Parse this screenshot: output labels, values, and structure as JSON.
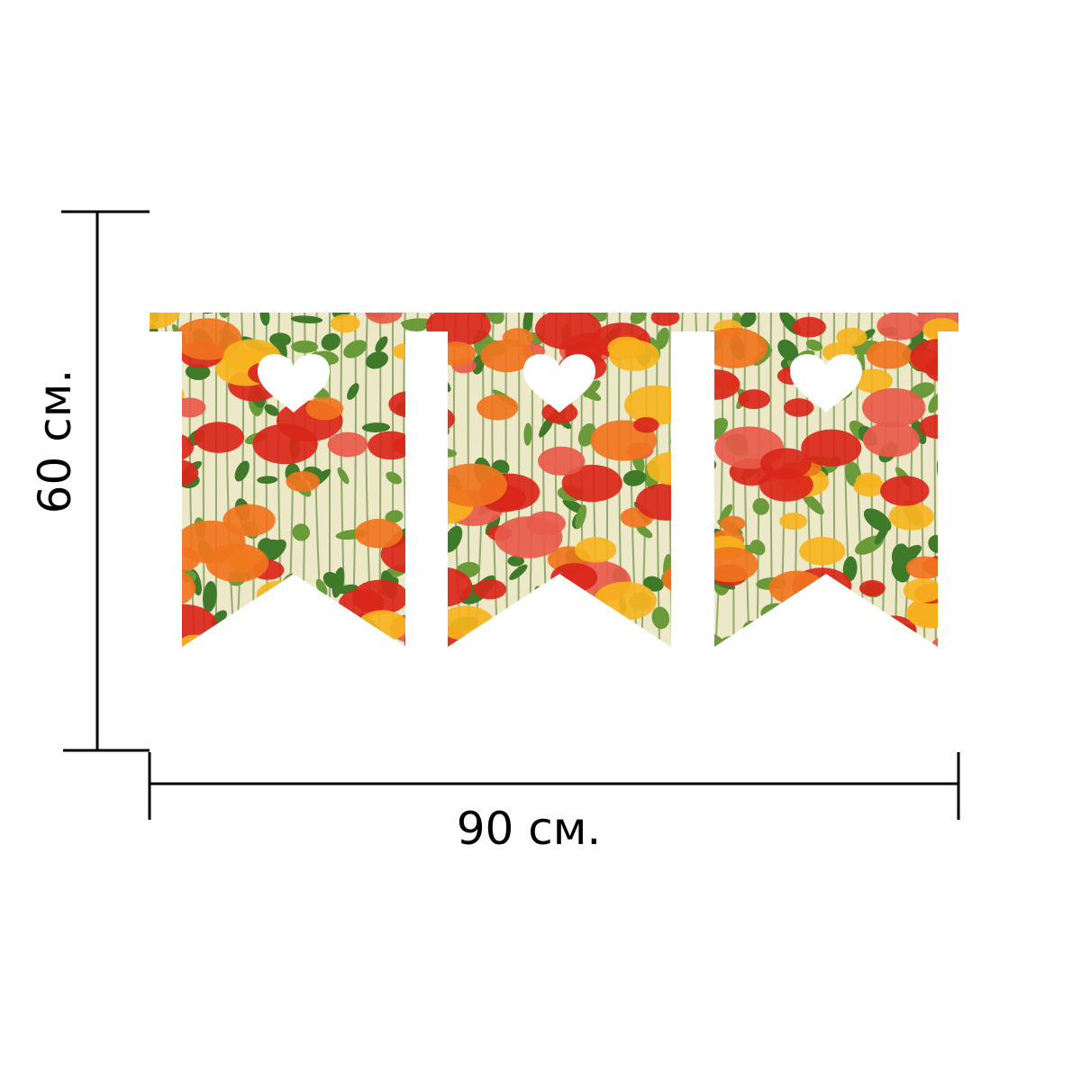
{
  "dimensions": {
    "height_label": "60 см.",
    "width_label": "90 см."
  },
  "product": {
    "pennant_count": 3,
    "cutout_shape": "heart",
    "pattern": "poppies",
    "colors": {
      "background": "#ece8c8",
      "poppy_red": "#d9261a",
      "poppy_orange": "#f0741e",
      "poppy_yellow": "#f6b31e",
      "leaf_green": "#3f7a2a"
    }
  }
}
